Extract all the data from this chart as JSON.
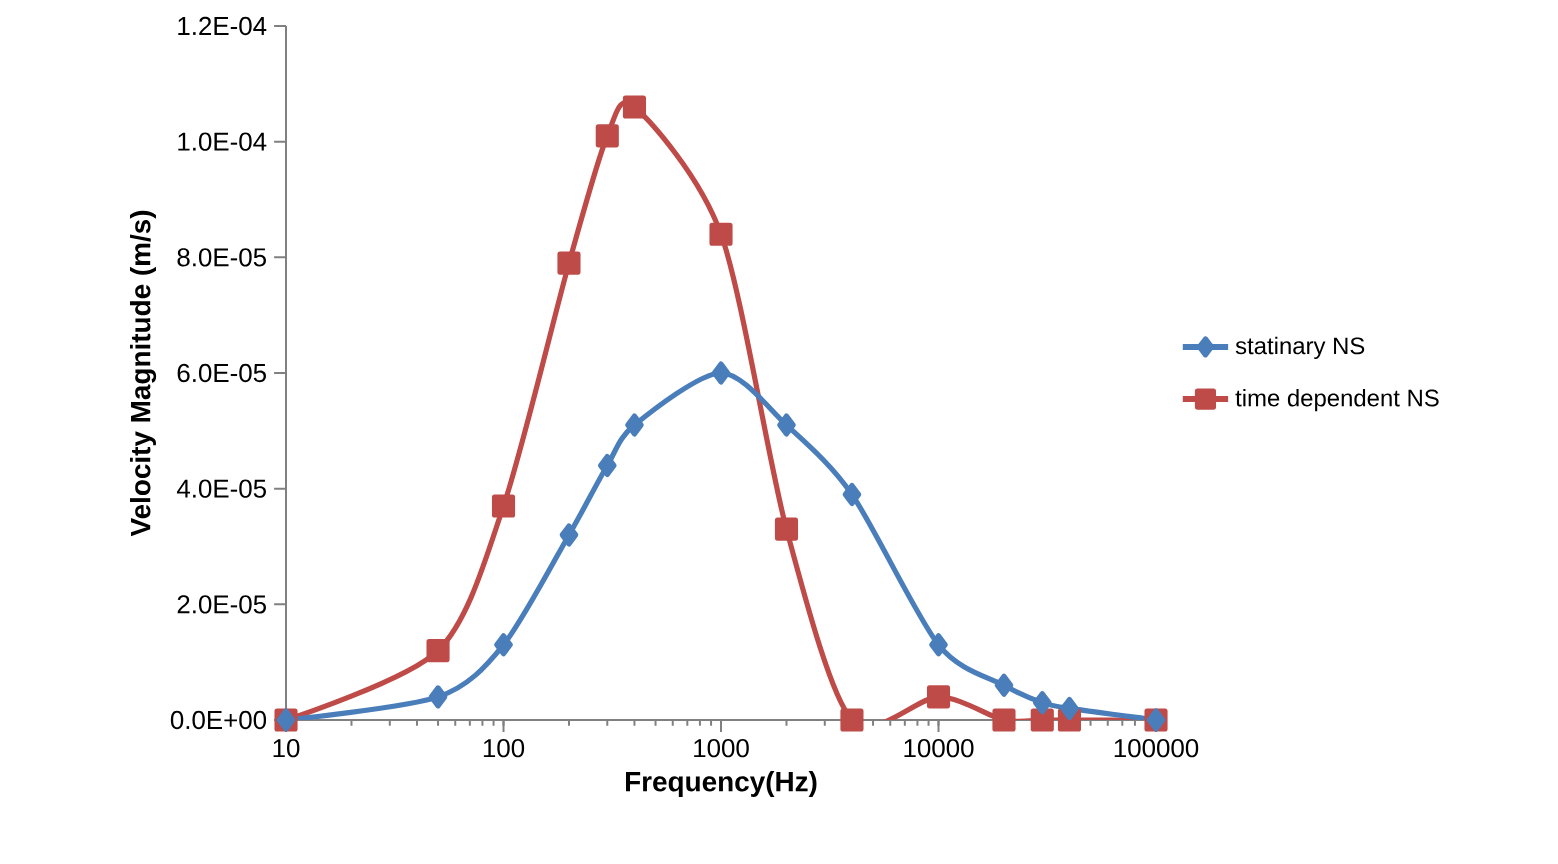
{
  "chart_data": {
    "type": "line",
    "xlabel": "Frequency(Hz)",
    "ylabel": "Velocity Magnitude (m/s)",
    "log": "x",
    "grid": false,
    "legend": "right",
    "line_style": "solid",
    "xlim": [
      10,
      100000
    ],
    "xticks": [
      10,
      100,
      1000,
      10000,
      100000
    ],
    "ylim": [
      0,
      0.00012
    ],
    "yticks": [
      {
        "value": 0,
        "label": "0.0E+00"
      },
      {
        "value": 2e-05,
        "label": "2.0E-05"
      },
      {
        "value": 4e-05,
        "label": "4.0E-05"
      },
      {
        "value": 6e-05,
        "label": "6.0E-05"
      },
      {
        "value": 8e-05,
        "label": "8.0E-05"
      },
      {
        "value": 0.0001,
        "label": "1.0E-04"
      },
      {
        "value": 0.00012,
        "label": "1.2E-04"
      }
    ],
    "series": [
      {
        "name": "statinary NS",
        "color": "#4a7ebb",
        "marker": "diamond",
        "x": [
          10,
          50,
          100,
          200,
          300,
          400,
          1000,
          2000,
          4000,
          10000,
          20000,
          30000,
          40000,
          100000
        ],
        "values": [
          0,
          4e-06,
          1.3e-05,
          3.2e-05,
          4.4e-05,
          5.1e-05,
          6e-05,
          5.1e-05,
          3.9e-05,
          1.3e-05,
          6e-06,
          3e-06,
          2e-06,
          0
        ]
      },
      {
        "name": "time dependent NS",
        "color": "#be4b48",
        "marker": "square",
        "x": [
          10,
          50,
          100,
          200,
          300,
          400,
          1000,
          2000,
          4000,
          10000,
          20000,
          30000,
          40000,
          100000
        ],
        "values": [
          0,
          1.2e-05,
          3.7e-05,
          7.9e-05,
          0.000101,
          0.000106,
          8.4e-05,
          3.3e-05,
          0,
          4e-06,
          0,
          0,
          0,
          0
        ]
      }
    ]
  }
}
